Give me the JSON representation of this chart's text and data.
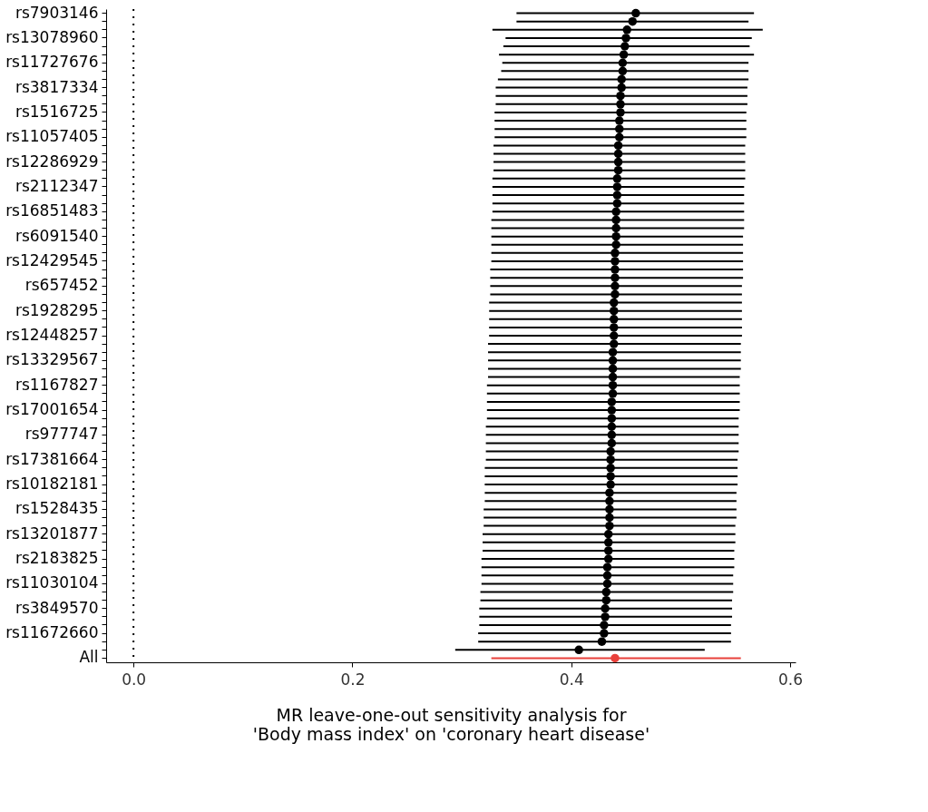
{
  "chart_data": {
    "type": "scatter",
    "orientation": "horizontal",
    "xlabel": "MR leave-one-out sensitivity analysis for\n'Body mass index' on 'coronary heart disease'",
    "categories": [
      "rs7903146",
      null,
      null,
      "rs13078960",
      null,
      null,
      "rs11727676",
      null,
      null,
      "rs3817334",
      null,
      null,
      "rs1516725",
      null,
      null,
      "rs11057405",
      null,
      null,
      "rs12286929",
      null,
      null,
      "rs2112347",
      null,
      null,
      "rs16851483",
      null,
      null,
      "rs6091540",
      null,
      null,
      "rs12429545",
      null,
      null,
      "rs657452",
      null,
      null,
      "rs1928295",
      null,
      null,
      "rs12448257",
      null,
      null,
      "rs13329567",
      null,
      null,
      "rs1167827",
      null,
      null,
      "rs17001654",
      null,
      null,
      "rs977747",
      null,
      null,
      "rs17381664",
      null,
      null,
      "rs10182181",
      null,
      null,
      "rs1528435",
      null,
      null,
      "rs13201877",
      null,
      null,
      "rs2183825",
      null,
      null,
      "rs11030104",
      null,
      null,
      "rs3849570",
      null,
      null,
      "rs11672660",
      null,
      null,
      "All"
    ],
    "values": [
      0.459,
      0.456,
      0.451,
      0.45,
      0.449,
      0.448,
      0.447,
      0.447,
      0.446,
      0.446,
      0.445,
      0.445,
      0.445,
      0.444,
      0.444,
      0.444,
      0.443,
      0.443,
      0.443,
      0.443,
      0.442,
      0.442,
      0.442,
      0.442,
      0.441,
      0.441,
      0.441,
      0.441,
      0.441,
      0.44,
      0.44,
      0.44,
      0.44,
      0.44,
      0.44,
      0.439,
      0.439,
      0.439,
      0.439,
      0.439,
      0.439,
      0.438,
      0.438,
      0.438,
      0.438,
      0.438,
      0.438,
      0.437,
      0.437,
      0.437,
      0.437,
      0.437,
      0.437,
      0.436,
      0.436,
      0.436,
      0.436,
      0.436,
      0.435,
      0.435,
      0.435,
      0.435,
      0.435,
      0.434,
      0.434,
      0.434,
      0.434,
      0.433,
      0.433,
      0.433,
      0.432,
      0.432,
      0.431,
      0.431,
      0.43,
      0.43,
      0.428,
      0.407,
      0.44
    ],
    "errors": [
      [
        0.35,
        0.567
      ],
      [
        0.35,
        0.562
      ],
      [
        0.328,
        0.575
      ],
      [
        0.34,
        0.565
      ],
      [
        0.338,
        0.563
      ],
      [
        0.334,
        0.567
      ],
      [
        0.337,
        0.562
      ],
      [
        0.336,
        0.562
      ],
      [
        0.333,
        0.562
      ],
      [
        0.331,
        0.561
      ],
      [
        0.331,
        0.561
      ],
      [
        0.331,
        0.561
      ],
      [
        0.33,
        0.56
      ],
      [
        0.33,
        0.56
      ],
      [
        0.33,
        0.56
      ],
      [
        0.33,
        0.56
      ],
      [
        0.329,
        0.559
      ],
      [
        0.329,
        0.559
      ],
      [
        0.329,
        0.559
      ],
      [
        0.329,
        0.559
      ],
      [
        0.328,
        0.559
      ],
      [
        0.328,
        0.558
      ],
      [
        0.328,
        0.558
      ],
      [
        0.328,
        0.558
      ],
      [
        0.328,
        0.558
      ],
      [
        0.327,
        0.558
      ],
      [
        0.327,
        0.558
      ],
      [
        0.327,
        0.557
      ],
      [
        0.327,
        0.557
      ],
      [
        0.327,
        0.557
      ],
      [
        0.327,
        0.557
      ],
      [
        0.326,
        0.557
      ],
      [
        0.326,
        0.557
      ],
      [
        0.326,
        0.556
      ],
      [
        0.326,
        0.556
      ],
      [
        0.325,
        0.556
      ],
      [
        0.325,
        0.556
      ],
      [
        0.325,
        0.556
      ],
      [
        0.325,
        0.556
      ],
      [
        0.325,
        0.556
      ],
      [
        0.324,
        0.555
      ],
      [
        0.324,
        0.555
      ],
      [
        0.324,
        0.555
      ],
      [
        0.324,
        0.555
      ],
      [
        0.324,
        0.554
      ],
      [
        0.323,
        0.554
      ],
      [
        0.323,
        0.554
      ],
      [
        0.323,
        0.554
      ],
      [
        0.323,
        0.554
      ],
      [
        0.323,
        0.553
      ],
      [
        0.322,
        0.553
      ],
      [
        0.322,
        0.553
      ],
      [
        0.322,
        0.553
      ],
      [
        0.322,
        0.553
      ],
      [
        0.322,
        0.552
      ],
      [
        0.321,
        0.552
      ],
      [
        0.321,
        0.552
      ],
      [
        0.321,
        0.552
      ],
      [
        0.321,
        0.551
      ],
      [
        0.321,
        0.551
      ],
      [
        0.32,
        0.551
      ],
      [
        0.32,
        0.551
      ],
      [
        0.32,
        0.55
      ],
      [
        0.319,
        0.55
      ],
      [
        0.319,
        0.55
      ],
      [
        0.319,
        0.549
      ],
      [
        0.318,
        0.549
      ],
      [
        0.318,
        0.549
      ],
      [
        0.318,
        0.548
      ],
      [
        0.318,
        0.548
      ],
      [
        0.317,
        0.548
      ],
      [
        0.317,
        0.547
      ],
      [
        0.316,
        0.547
      ],
      [
        0.316,
        0.547
      ],
      [
        0.316,
        0.546
      ],
      [
        0.315,
        0.546
      ],
      [
        0.315,
        0.546
      ],
      [
        0.294,
        0.522
      ],
      [
        0.327,
        0.555
      ]
    ],
    "colors": [
      "#000000",
      "#000000",
      "#000000",
      "#000000",
      "#000000",
      "#000000",
      "#000000",
      "#000000",
      "#000000",
      "#000000",
      "#000000",
      "#000000",
      "#000000",
      "#000000",
      "#000000",
      "#000000",
      "#000000",
      "#000000",
      "#000000",
      "#000000",
      "#000000",
      "#000000",
      "#000000",
      "#000000",
      "#000000",
      "#000000",
      "#000000",
      "#000000",
      "#000000",
      "#000000",
      "#000000",
      "#000000",
      "#000000",
      "#000000",
      "#000000",
      "#000000",
      "#000000",
      "#000000",
      "#000000",
      "#000000",
      "#000000",
      "#000000",
      "#000000",
      "#000000",
      "#000000",
      "#000000",
      "#000000",
      "#000000",
      "#000000",
      "#000000",
      "#000000",
      "#000000",
      "#000000",
      "#000000",
      "#000000",
      "#000000",
      "#000000",
      "#000000",
      "#000000",
      "#000000",
      "#000000",
      "#000000",
      "#000000",
      "#000000",
      "#000000",
      "#000000",
      "#000000",
      "#000000",
      "#000000",
      "#000000",
      "#000000",
      "#000000",
      "#000000",
      "#000000",
      "#000000",
      "#000000",
      "#000000",
      "#000000",
      "#e8403a"
    ],
    "xlim": [
      -0.025,
      0.605
    ],
    "xticks": [
      {
        "value": 0,
        "label": "0.0"
      },
      {
        "value": 0.2,
        "label": "0.2"
      },
      {
        "value": 0.4,
        "label": "0.4"
      },
      {
        "value": 0.6,
        "label": "0.6"
      }
    ],
    "ref_lines": [
      {
        "axis": "x",
        "value": 0,
        "label": null,
        "line_style": "dotted"
      }
    ],
    "marker": "circle",
    "grid": false
  }
}
